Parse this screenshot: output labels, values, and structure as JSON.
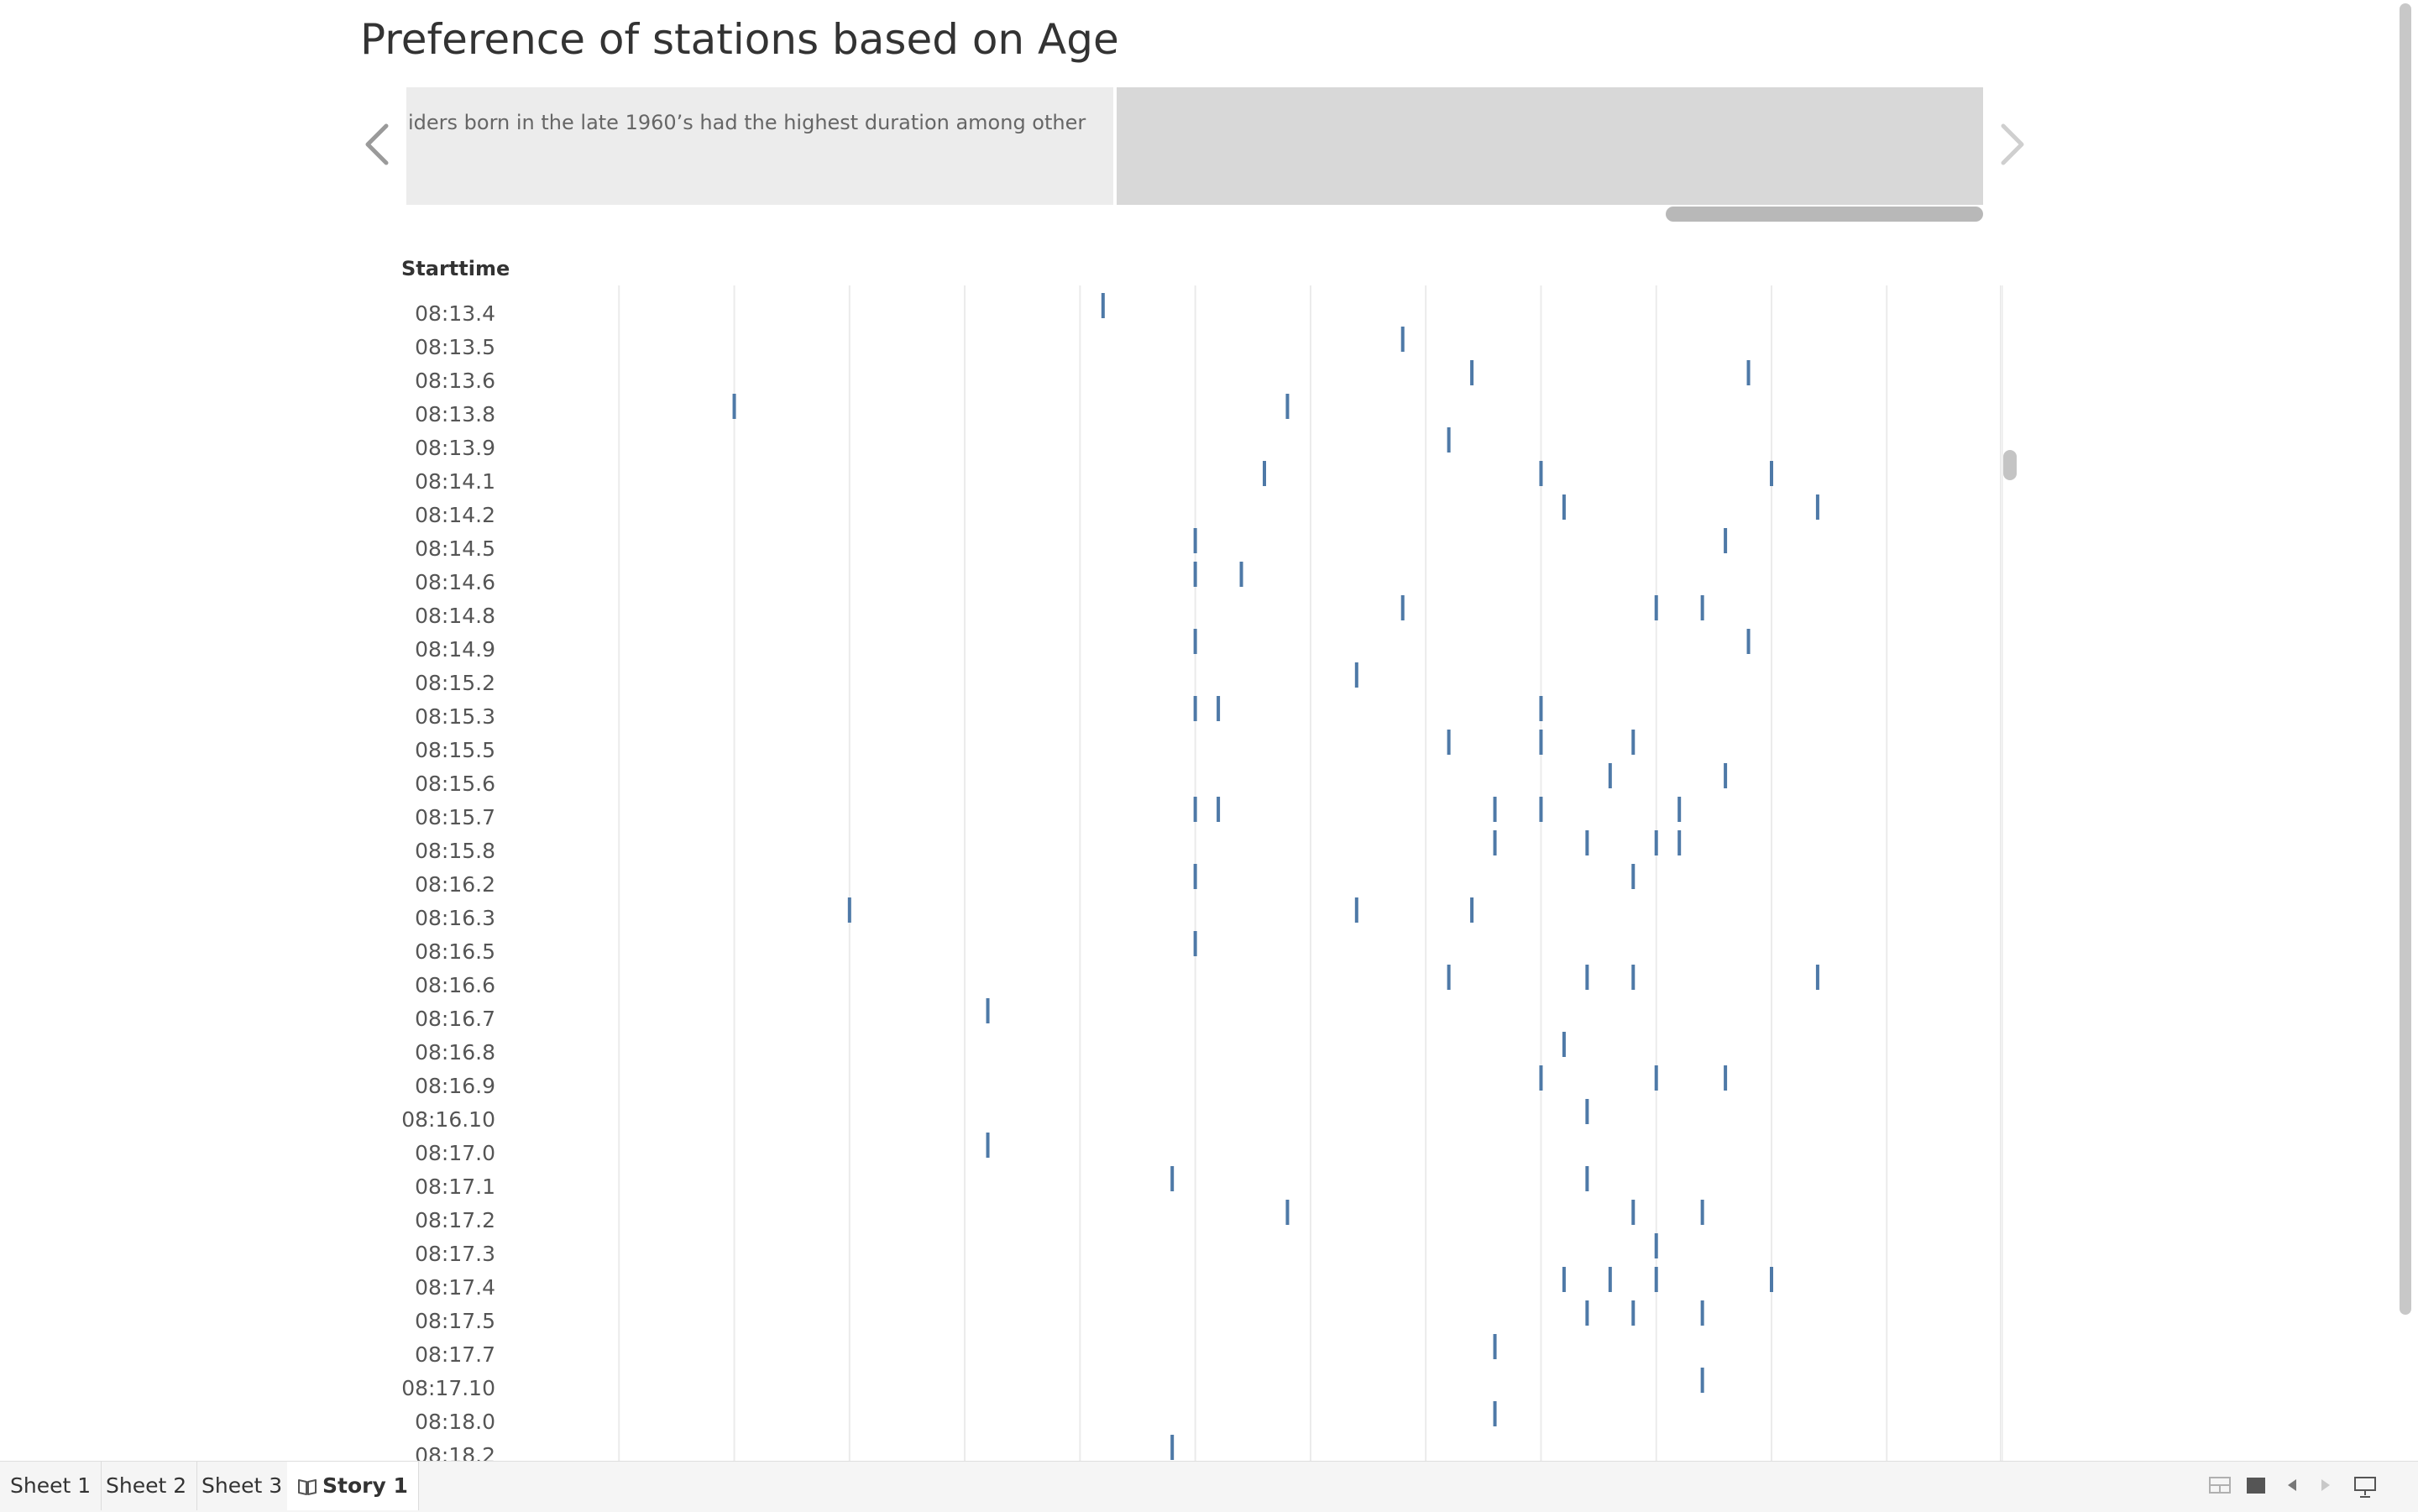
{
  "story": {
    "title": "Preference of stations based on Age",
    "story_points": [
      {
        "text": "iders born in the late 1960’s had the highest duration among other"
      },
      {
        "text": ""
      }
    ]
  },
  "icons": {
    "prev": "chevron-left-icon",
    "next": "chevron-right-icon",
    "story_tab": "book-icon",
    "show_sheets": "grid-view-icon",
    "single_sheet": "single-view-icon",
    "sheet_back": "triangle-left-icon",
    "sheet_forward": "triangle-right-icon",
    "presentation": "presentation-mode-icon"
  },
  "colors": {
    "mark": "#4e79a7",
    "gridline": "#ebebeb"
  },
  "chart_data": {
    "type": "scatter",
    "mark_shape": "tick",
    "row_header": "Starttime",
    "rows": [
      {
        "label": "08:13.4",
        "x": [
          26
        ]
      },
      {
        "label": "08:13.5",
        "x": [
          39
        ]
      },
      {
        "label": "08:13.6",
        "x": [
          42,
          54
        ]
      },
      {
        "label": "08:13.8",
        "x": [
          10,
          34
        ]
      },
      {
        "label": "08:13.9",
        "x": [
          41
        ]
      },
      {
        "label": "08:14.1",
        "x": [
          33,
          45,
          55
        ]
      },
      {
        "label": "08:14.2",
        "x": [
          46,
          57
        ]
      },
      {
        "label": "08:14.5",
        "x": [
          30,
          53
        ]
      },
      {
        "label": "08:14.6",
        "x": [
          30,
          32
        ]
      },
      {
        "label": "08:14.8",
        "x": [
          39,
          50,
          52
        ]
      },
      {
        "label": "08:14.9",
        "x": [
          30,
          54
        ]
      },
      {
        "label": "08:15.2",
        "x": [
          37
        ]
      },
      {
        "label": "08:15.3",
        "x": [
          30,
          31,
          45
        ]
      },
      {
        "label": "08:15.5",
        "x": [
          41,
          45,
          49
        ]
      },
      {
        "label": "08:15.6",
        "x": [
          48,
          53
        ]
      },
      {
        "label": "08:15.7",
        "x": [
          30,
          31,
          43,
          45,
          51
        ]
      },
      {
        "label": "08:15.8",
        "x": [
          43,
          47,
          50,
          51
        ]
      },
      {
        "label": "08:16.2",
        "x": [
          30,
          49
        ]
      },
      {
        "label": "08:16.3",
        "x": [
          15,
          37,
          42
        ]
      },
      {
        "label": "08:16.5",
        "x": [
          30
        ]
      },
      {
        "label": "08:16.6",
        "x": [
          41,
          47,
          49,
          57
        ]
      },
      {
        "label": "08:16.7",
        "x": [
          21
        ]
      },
      {
        "label": "08:16.8",
        "x": [
          46
        ]
      },
      {
        "label": "08:16.9",
        "x": [
          45,
          50,
          53
        ]
      },
      {
        "label": "08:16.10",
        "x": [
          47
        ]
      },
      {
        "label": "08:17.0",
        "x": [
          21
        ]
      },
      {
        "label": "08:17.1",
        "x": [
          29,
          47
        ]
      },
      {
        "label": "08:17.2",
        "x": [
          34,
          49,
          52
        ]
      },
      {
        "label": "08:17.3",
        "x": [
          50
        ]
      },
      {
        "label": "08:17.4",
        "x": [
          46,
          48,
          50,
          55
        ]
      },
      {
        "label": "08:17.5",
        "x": [
          47,
          49,
          52
        ]
      },
      {
        "label": "08:17.7",
        "x": [
          43
        ]
      },
      {
        "label": "08:17.10",
        "x": [
          52
        ]
      },
      {
        "label": "08:18.0",
        "x": [
          43
        ]
      },
      {
        "label": "08:18.2",
        "x": [
          29
        ]
      }
    ],
    "xlim": [
      0,
      66
    ],
    "grid": true
  },
  "tabs": [
    {
      "label": "Sheet 1",
      "active": false
    },
    {
      "label": "Sheet 2",
      "active": false
    },
    {
      "label": "Sheet 3",
      "active": false
    },
    {
      "label": "Story 1",
      "active": true
    }
  ]
}
